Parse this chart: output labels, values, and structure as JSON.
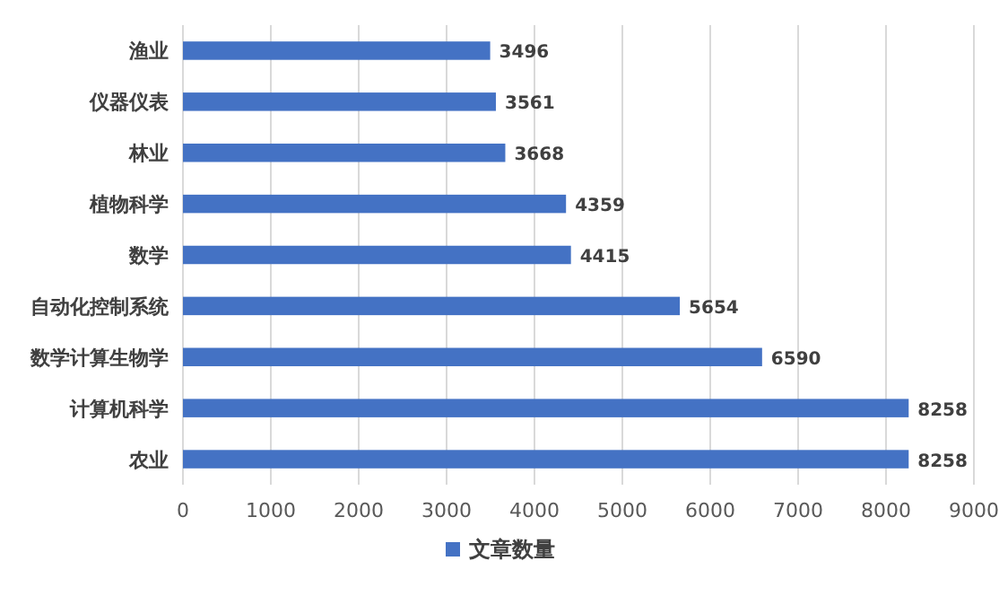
{
  "chart_data": {
    "type": "bar",
    "orientation": "horizontal",
    "categories": [
      "渔业",
      "仪器仪表",
      "林业",
      "植物科学",
      "数学",
      "自动化控制系统",
      "数学计算生物学",
      "计算机科学",
      "农业"
    ],
    "series": [
      {
        "name": "文章数量",
        "color": "#4472c4",
        "values": [
          3496,
          3561,
          3668,
          4359,
          4415,
          5654,
          6590,
          8258,
          8258
        ]
      }
    ],
    "xlim": [
      0,
      9000
    ],
    "xticks": [
      0,
      1000,
      2000,
      3000,
      4000,
      5000,
      6000,
      7000,
      8000,
      9000
    ],
    "grid": "x",
    "legend": "bottom",
    "data_labels": true
  }
}
